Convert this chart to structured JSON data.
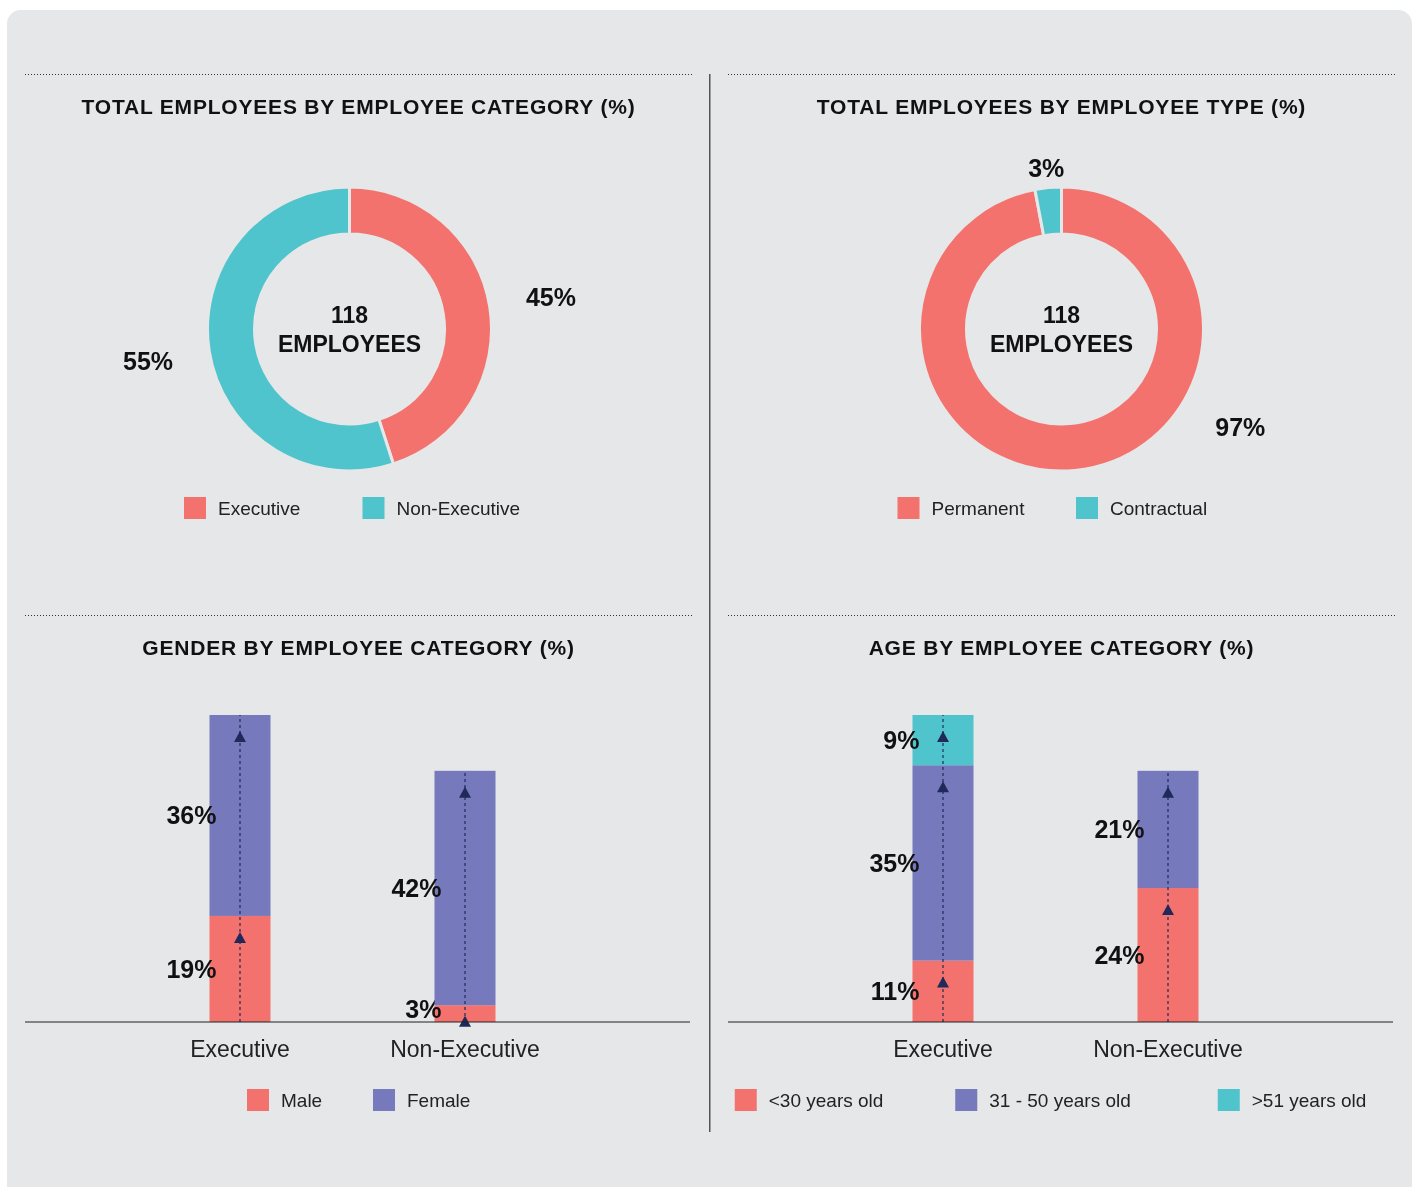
{
  "chart_data": [
    {
      "type": "donut",
      "title": "TOTAL EMPLOYEES BY EMPLOYEE CATEGORY (%)",
      "categories": [
        "Executive",
        "Non-Executive"
      ],
      "values": [
        45,
        55
      ],
      "colors": [
        "#f4726d",
        "#4fc4cc"
      ],
      "value_labels": [
        "45%",
        "55%"
      ],
      "annotations": [
        "118 EMPLOYEES"
      ],
      "legend": "bottom"
    },
    {
      "type": "donut",
      "title": "TOTAL EMPLOYEES BY EMPLOYEE TYPE (%)",
      "categories": [
        "Permanent",
        "Contractual"
      ],
      "values": [
        97,
        3
      ],
      "colors": [
        "#f4726d",
        "#4fc4cc"
      ],
      "value_labels": [
        "97%",
        "3%"
      ],
      "annotations": [
        "118 EMPLOYEES"
      ],
      "legend": "bottom"
    },
    {
      "type": "bar",
      "title": "GENDER BY EMPLOYEE CATEGORY (%)",
      "categories": [
        "Executive",
        "Non-Executive"
      ],
      "stacked": true,
      "legend": "bottom",
      "series": [
        {
          "name": "Male",
          "color": "#f4726d",
          "values": [
            19,
            3
          ],
          "value_labels": [
            "19%",
            "3%"
          ]
        },
        {
          "name": "Female",
          "color": "#7679bb",
          "values": [
            36,
            42
          ],
          "value_labels": [
            "36%",
            "42%"
          ]
        }
      ]
    },
    {
      "type": "bar",
      "title": "AGE BY EMPLOYEE CATEGORY (%)",
      "categories": [
        "Executive",
        "Non-Executive"
      ],
      "stacked": true,
      "legend": "bottom",
      "series": [
        {
          "name": "<30 years old",
          "color": "#f4726d",
          "values": [
            11,
            24
          ],
          "value_labels": [
            "11%",
            "24%"
          ]
        },
        {
          "name": "31 - 50 years old",
          "color": "#7679bb",
          "values": [
            35,
            21
          ],
          "value_labels": [
            "35%",
            "21%"
          ]
        },
        {
          "name": ">51 years old",
          "color": "#4fc4cc",
          "values": [
            9,
            null
          ],
          "value_labels": [
            "9%",
            null
          ]
        }
      ]
    }
  ]
}
